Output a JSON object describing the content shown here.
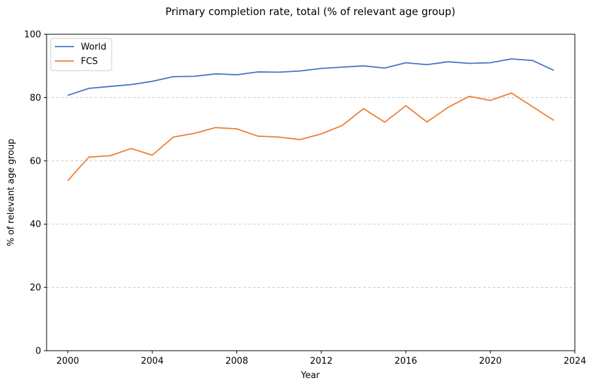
{
  "chart_data": {
    "type": "line",
    "title": "Primary completion rate, total (% of relevant age group)",
    "xlabel": "Year",
    "ylabel": "% of relevant age group",
    "xlim": [
      1999,
      2024
    ],
    "ylim": [
      0,
      100
    ],
    "x_ticks": [
      2000,
      2004,
      2008,
      2012,
      2016,
      2020,
      2024
    ],
    "y_ticks": [
      0,
      20,
      40,
      60,
      80,
      100
    ],
    "grid": "y-dashed",
    "legend_position": "top-left",
    "x": [
      2000,
      2001,
      2002,
      2003,
      2004,
      2005,
      2006,
      2007,
      2008,
      2009,
      2010,
      2011,
      2012,
      2013,
      2014,
      2015,
      2016,
      2017,
      2018,
      2019,
      2020,
      2021,
      2022,
      2023
    ],
    "series": [
      {
        "name": "World",
        "color": "#4472c4",
        "values": [
          80.7,
          82.9,
          83.5,
          84.1,
          85.1,
          86.6,
          86.7,
          87.5,
          87.2,
          88.1,
          88.0,
          88.4,
          89.2,
          89.6,
          90.0,
          89.3,
          91.0,
          90.4,
          91.3,
          90.8,
          91.0,
          92.2,
          91.7,
          88.6
        ]
      },
      {
        "name": "FCS",
        "color": "#ed7d31",
        "values": [
          53.7,
          61.2,
          61.6,
          63.9,
          61.8,
          67.5,
          68.7,
          70.5,
          70.1,
          67.8,
          67.5,
          66.7,
          68.5,
          71.2,
          76.5,
          72.2,
          77.4,
          72.3,
          76.9,
          80.4,
          79.1,
          81.4,
          77.1,
          72.8
        ]
      }
    ]
  }
}
